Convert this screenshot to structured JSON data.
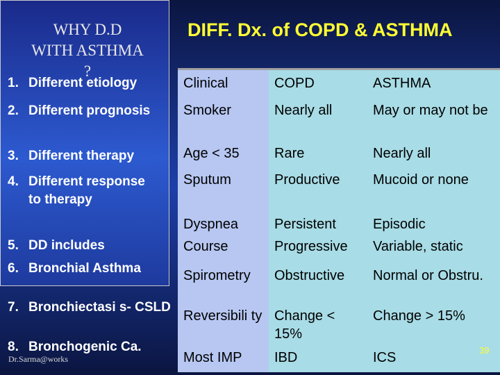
{
  "left": {
    "title_line1": "WHY D.D",
    "title_line2": "WITH ASTHMA",
    "title_line3": "?",
    "items": [
      {
        "num": "1.",
        "text": "Different etiology"
      },
      {
        "num": "2.",
        "text": "Different prognosis"
      },
      {
        "num": "3.",
        "text": "Different therapy"
      },
      {
        "num": "4.",
        "text": "Different response    to therapy"
      },
      {
        "num": "5.",
        "text": "DD includes"
      },
      {
        "num": "6.",
        "text": "Bronchial Asthma"
      },
      {
        "num": "7.",
        "text": "Bronchiectasi s- CSLD"
      },
      {
        "num": "8.",
        "text": "Bronchogenic Ca."
      }
    ],
    "credit": "Dr.Sarma@works"
  },
  "slide_title": "DIFF. Dx. of COPD & ASTHMA",
  "table": {
    "rows": [
      [
        "Clinical",
        "COPD",
        "ASTHMA"
      ],
      [
        "Smoker",
        "Nearly all",
        "May or may not be"
      ],
      [
        "Age < 35",
        "Rare",
        "Nearly all"
      ],
      [
        "Sputum",
        "Productive",
        "Mucoid or none"
      ],
      [
        "Dyspnea",
        "Persistent",
        "Episodic"
      ],
      [
        "Course",
        "Progressive",
        "Variable, static"
      ],
      [
        "Spirometry",
        "Obstructive",
        "Normal or Obstru."
      ],
      [
        "Reversibili ty",
        "Change < 15%",
        "Change > 15%"
      ],
      [
        "Most IMP",
        "IBD",
        "ICS"
      ]
    ]
  },
  "page_number": "39"
}
